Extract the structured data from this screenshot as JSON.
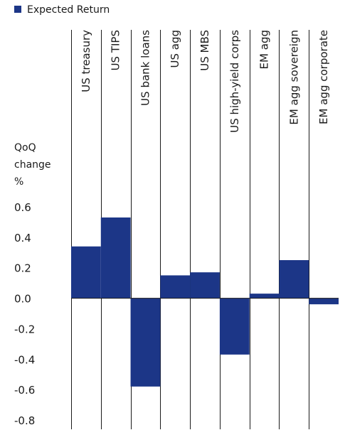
{
  "chart_data": {
    "type": "bar",
    "legend": {
      "entries": [
        "Expected Return"
      ],
      "placement": "top-left"
    },
    "ylabel_lines": [
      "QoQ",
      "change",
      "%"
    ],
    "ylim": [
      -0.8,
      0.6
    ],
    "yticks": [
      "0.6",
      "0.4",
      "0.2",
      "0.0",
      "-0.2",
      "-0.4",
      "-0.6",
      "-0.8"
    ],
    "categories": [
      "US treasury",
      "US TIPS",
      "US bank loans",
      "US agg",
      "US MBS",
      "US high-yield corps",
      "EM agg",
      "EM agg sovereign",
      "EM agg corporate"
    ],
    "series": [
      {
        "name": "Expected Return",
        "color": "#1c3687",
        "values": [
          0.34,
          0.53,
          -0.58,
          0.15,
          0.17,
          -0.37,
          0.03,
          0.25,
          -0.04
        ]
      }
    ],
    "grid": false,
    "colors": {
      "bar": "#1c3687",
      "text": "#1a1a1a",
      "lines": "#1a1a1a"
    }
  }
}
